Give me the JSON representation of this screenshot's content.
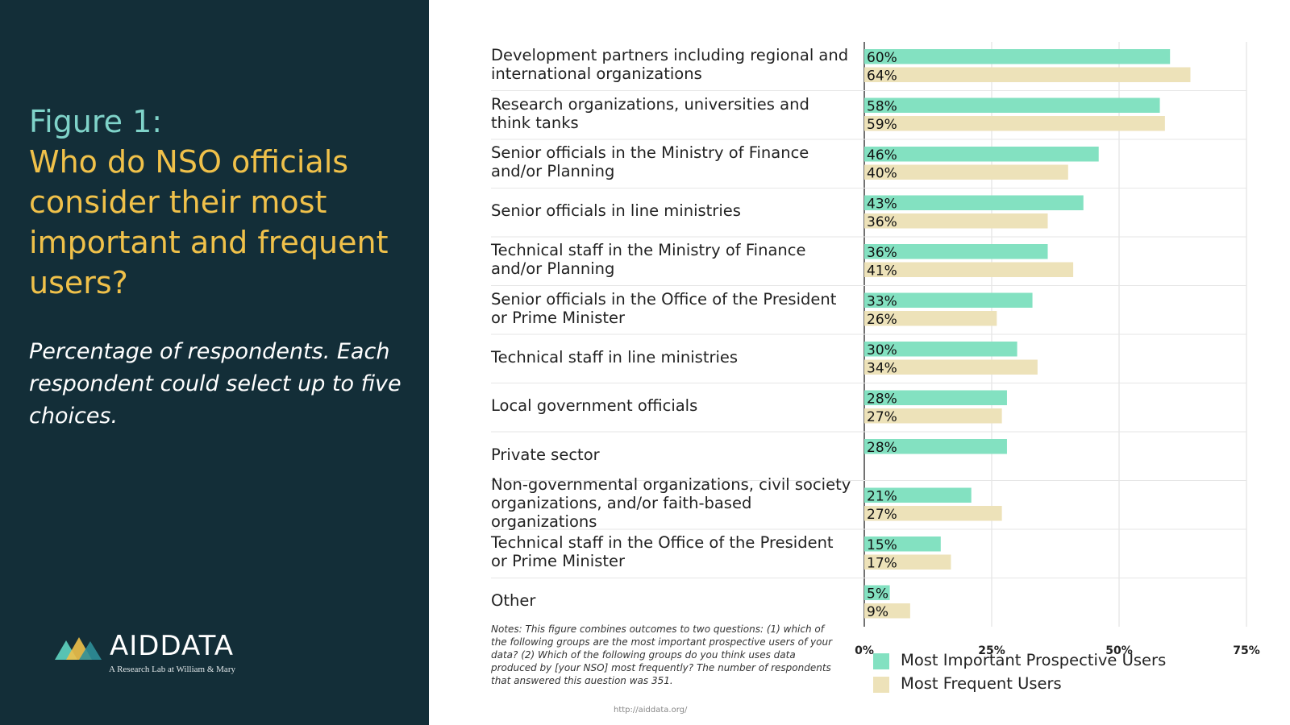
{
  "figure_number": "Figure 1:",
  "figure_title": "Who do NSO officials consider their most important and frequent users?",
  "subtitle": "Percentage of respondents. Each respondent could select up to five choices.",
  "logo": {
    "name": "AIDDATA",
    "tagline": "A Research Lab at William & Mary"
  },
  "notes": "Notes: This figure combines outcomes to two questions: (1) which of the following groups are the most important prospective users of your data? (2) Which of the following groups do you think uses data produced by [your NSO] most frequently? The number of respondents that answered this question was 351.",
  "url": "http://aiddata.org/",
  "colors": {
    "panel": "#132e38",
    "accent_teal": "#7fd3c9",
    "accent_gold": "#f0c14a",
    "series_important": "#83e1c1",
    "series_frequent": "#ede2b9"
  },
  "chart_data": {
    "type": "bar",
    "orientation": "horizontal",
    "categories": [
      "Development partners including regional and international organizations",
      "Research organizations, universities and think tanks",
      "Senior officials in the Ministry of Finance and/or Planning",
      "Senior officials in line ministries",
      "Technical staff in the Ministry of Finance and/or Planning",
      "Senior officials in the Office of the President or Prime Minister",
      "Technical staff in line ministries",
      "Local government officials",
      "Private sector",
      "Non-governmental organizations, civil society organizations, and/or faith-based organizations",
      "Technical staff in the Office of the President or Prime Minister",
      "Other"
    ],
    "series": [
      {
        "name": "Most Important Prospective Users",
        "color": "#83e1c1",
        "values": [
          60,
          58,
          46,
          43,
          36,
          33,
          30,
          28,
          28,
          21,
          15,
          5
        ]
      },
      {
        "name": "Most Frequent Users",
        "color": "#ede2b9",
        "values": [
          64,
          59,
          40,
          36,
          41,
          26,
          34,
          27,
          null,
          27,
          17,
          9
        ]
      }
    ],
    "xlim": [
      0,
      75
    ],
    "xticks": [
      0,
      25,
      50,
      75
    ],
    "xtick_labels": [
      "0%",
      "25%",
      "50%",
      "75%"
    ],
    "value_suffix": "%",
    "grid": true,
    "legend_position": "bottom"
  }
}
